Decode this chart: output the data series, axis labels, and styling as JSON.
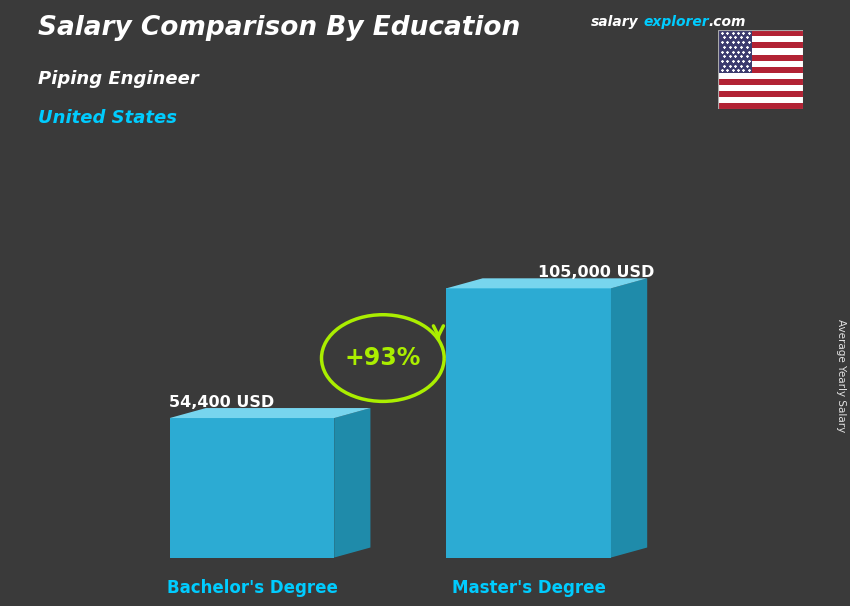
{
  "title_main": "Salary Comparison By Education",
  "subtitle_job": "Piping Engineer",
  "subtitle_country": "United States",
  "categories": [
    "Bachelor's Degree",
    "Master's Degree"
  ],
  "values": [
    54400,
    105000
  ],
  "value_labels": [
    "54,400 USD",
    "105,000 USD"
  ],
  "pct_change": "+93%",
  "bar_color_face": "#29c5f6",
  "bar_color_side": "#1a9ec4",
  "bar_color_top": "#7de3ff",
  "bar_alpha": 0.82,
  "ylim": [
    0,
    130000
  ],
  "bg_color": "#3a3a3a",
  "text_color_white": "#ffffff",
  "text_color_cyan": "#00ccff",
  "text_color_green": "#aaee00",
  "ylabel_side": "Average Yearly Salary",
  "fig_width": 8.5,
  "fig_height": 6.06,
  "salary_color": "#ffffff",
  "explorer_color": "#00ccff",
  "com_color": "#ffffff"
}
